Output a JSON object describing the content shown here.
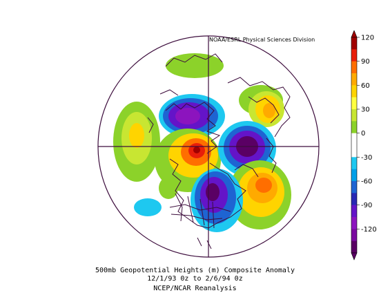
{
  "credit": "NOAA/ESRL Physical Sciences Division",
  "caption": {
    "line1": "500mb Geopotential Heights (m)   Composite Anomaly",
    "line2": "12/1/93 0z  to 2/6/94 0z",
    "line3": "NCEP/NCAR Reanalysis"
  },
  "colorbar": {
    "ticks": [
      "120",
      "90",
      "60",
      "30",
      "0",
      "-30",
      "-60",
      "-90",
      "-120"
    ],
    "colors": [
      "#a00000",
      "#e81e0a",
      "#ff6e00",
      "#ffaa00",
      "#ffd400",
      "#ffff40",
      "#c8e632",
      "#8cd22a",
      "#ffffff",
      "#ffffff",
      "#1ec8f0",
      "#00a0e8",
      "#1e64d2",
      "#2828b4",
      "#6414c8",
      "#8c14be",
      "#7a0aa0",
      "#5a0064"
    ]
  },
  "map": {
    "projection": "north-polar-stereographic",
    "anomalies": [
      {
        "region": "aleutian-low",
        "sign": "negative",
        "level": -90
      },
      {
        "region": "siberia-low",
        "sign": "negative",
        "level": -90
      },
      {
        "region": "eastern-north-america-low",
        "sign": "negative",
        "level": -90
      },
      {
        "region": "alaska-high",
        "sign": "positive",
        "level": 120
      },
      {
        "region": "north-atlantic-high",
        "sign": "positive",
        "level": 90
      },
      {
        "region": "europe-high",
        "sign": "positive",
        "level": 60
      },
      {
        "region": "north-pacific-high",
        "sign": "positive",
        "level": 60
      }
    ]
  }
}
